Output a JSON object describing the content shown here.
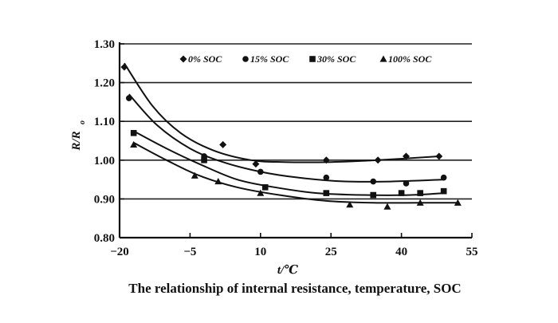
{
  "chart_data": {
    "type": "line",
    "xlabel": "t/℃",
    "ylabel": "R/R",
    "ylabel_sub": "o",
    "xlim": [
      -20,
      55
    ],
    "ylim": [
      0.8,
      1.3
    ],
    "xticks": [
      -20,
      -5,
      10,
      25,
      40,
      55
    ],
    "xtick_labels": [
      "−20",
      "−5",
      "10",
      "25",
      "40",
      "55"
    ],
    "yticks": [
      0.8,
      0.9,
      1.0,
      1.1,
      1.2,
      1.3
    ],
    "ytick_labels": [
      "0.80",
      "0.90",
      "1.00",
      "1.10",
      "1.20",
      "1.30"
    ],
    "grid": "horizontal",
    "legend_position": "top",
    "series": [
      {
        "name": "0% SOC",
        "marker": "diamond",
        "points": [
          [
            -19,
            1.24
          ],
          [
            2,
            1.04
          ],
          [
            9,
            0.99
          ],
          [
            24,
            1.0
          ],
          [
            35,
            1.0
          ],
          [
            41,
            1.01
          ],
          [
            48,
            1.01
          ]
        ],
        "curve": [
          [
            -19,
            1.25
          ],
          [
            -13,
            1.14
          ],
          [
            -7,
            1.07
          ],
          [
            0,
            1.025
          ],
          [
            8,
            1.0
          ],
          [
            15,
            0.995
          ],
          [
            25,
            0.995
          ],
          [
            35,
            1.0
          ],
          [
            48,
            1.01
          ]
        ]
      },
      {
        "name": "15% SOC",
        "marker": "circle",
        "points": [
          [
            -18,
            1.16
          ],
          [
            -2,
            1.01
          ],
          [
            10,
            0.97
          ],
          [
            24,
            0.955
          ],
          [
            34,
            0.945
          ],
          [
            41,
            0.94
          ],
          [
            49,
            0.955
          ]
        ],
        "curve": [
          [
            -18,
            1.17
          ],
          [
            -12,
            1.09
          ],
          [
            -5,
            1.03
          ],
          [
            2,
            0.995
          ],
          [
            10,
            0.97
          ],
          [
            18,
            0.955
          ],
          [
            28,
            0.945
          ],
          [
            38,
            0.945
          ],
          [
            49,
            0.95
          ]
        ]
      },
      {
        "name": "30% SOC",
        "marker": "square",
        "points": [
          [
            -17,
            1.07
          ],
          [
            -2,
            1.0
          ],
          [
            11,
            0.93
          ],
          [
            24,
            0.915
          ],
          [
            34,
            0.91
          ],
          [
            40,
            0.915
          ],
          [
            44,
            0.915
          ],
          [
            49,
            0.92
          ]
        ],
        "curve": [
          [
            -17,
            1.075
          ],
          [
            -10,
            1.03
          ],
          [
            -3,
            0.99
          ],
          [
            5,
            0.95
          ],
          [
            13,
            0.93
          ],
          [
            22,
            0.915
          ],
          [
            32,
            0.91
          ],
          [
            42,
            0.91
          ],
          [
            49,
            0.915
          ]
        ]
      },
      {
        "name": "100% SOC",
        "marker": "triangle",
        "points": [
          [
            -17,
            1.04
          ],
          [
            -4,
            0.96
          ],
          [
            1,
            0.945
          ],
          [
            10,
            0.915
          ],
          [
            29,
            0.885
          ],
          [
            37,
            0.88
          ],
          [
            44,
            0.89
          ],
          [
            52,
            0.89
          ]
        ],
        "curve": [
          [
            -17,
            1.045
          ],
          [
            -10,
            1.0
          ],
          [
            -3,
            0.96
          ],
          [
            5,
            0.93
          ],
          [
            14,
            0.91
          ],
          [
            24,
            0.895
          ],
          [
            34,
            0.89
          ],
          [
            44,
            0.89
          ],
          [
            52,
            0.89
          ]
        ]
      }
    ]
  },
  "caption": "The relationship of internal resistance, temperature, SOC"
}
